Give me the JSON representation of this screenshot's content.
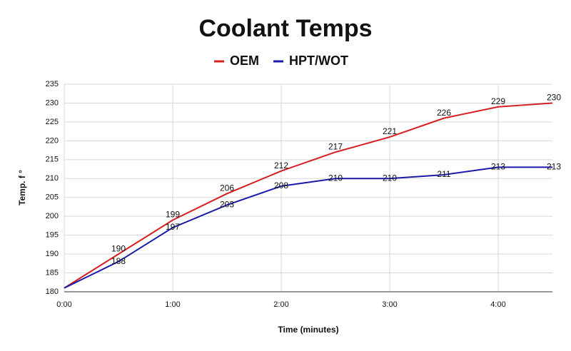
{
  "chart_data": {
    "type": "line",
    "title": "Coolant Temps",
    "x_label": "Time (minutes)",
    "y_label": "Temp. f °",
    "x": [
      0,
      0.5,
      1,
      1.5,
      2,
      2.5,
      3,
      3.5,
      4,
      4.5
    ],
    "series": [
      {
        "name": "OEM",
        "color": "#d42020",
        "values": [
          181,
          190,
          199,
          206,
          212,
          217,
          221,
          226,
          229,
          230
        ]
      },
      {
        "name": "HPT/WOT",
        "color": "#1a1aaa",
        "values": [
          181,
          188,
          197,
          203,
          208,
          210,
          210,
          211,
          213,
          213
        ]
      }
    ],
    "xlim": [
      0,
      4.5
    ],
    "xticks": [
      {
        "value": 0,
        "label": "0:00"
      },
      {
        "value": 1,
        "label": "1:00"
      },
      {
        "value": 2,
        "label": "2:00"
      },
      {
        "value": 3,
        "label": "3:00"
      },
      {
        "value": 4,
        "label": "4:00"
      }
    ],
    "ylim": [
      180,
      235
    ],
    "yticks": [
      180,
      185,
      190,
      195,
      200,
      205,
      210,
      215,
      220,
      225,
      230,
      235
    ],
    "grid": true,
    "legend": "top"
  }
}
